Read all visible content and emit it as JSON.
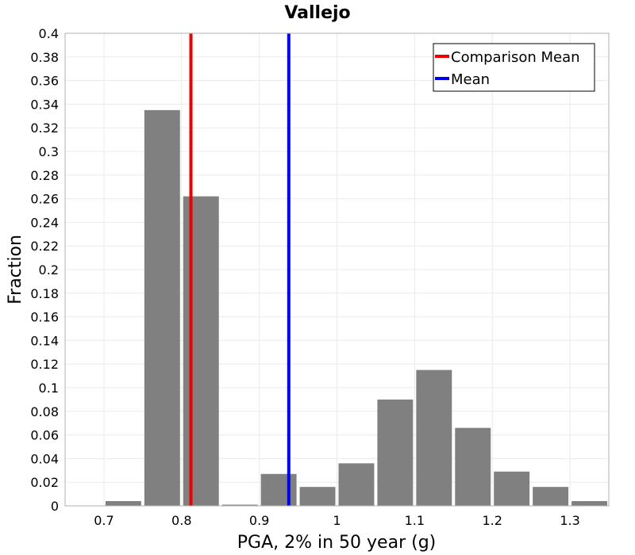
{
  "chart_data": {
    "type": "bar",
    "title": "Vallejo",
    "xlabel": "PGA, 2% in 50 year (g)",
    "ylabel": "Fraction",
    "xlim": [
      0.65,
      1.35
    ],
    "ylim": [
      0,
      0.4
    ],
    "x_ticks": [
      "0.7",
      "0.8",
      "0.9",
      "1",
      "1.1",
      "1.2",
      "1.3"
    ],
    "y_ticks": [
      "0",
      "0.02",
      "0.04",
      "0.06",
      "0.08",
      "0.1",
      "0.12",
      "0.14",
      "0.16",
      "0.18",
      "0.2",
      "0.22",
      "0.24",
      "0.26",
      "0.28",
      "0.3",
      "0.32",
      "0.34",
      "0.36",
      "0.38",
      "0.4"
    ],
    "bin_width": 0.05,
    "bins": [
      {
        "x": 0.675,
        "value": 0.0
      },
      {
        "x": 0.725,
        "value": 0.004
      },
      {
        "x": 0.775,
        "value": 0.335
      },
      {
        "x": 0.825,
        "value": 0.262
      },
      {
        "x": 0.875,
        "value": 0.001
      },
      {
        "x": 0.925,
        "value": 0.027
      },
      {
        "x": 0.975,
        "value": 0.016
      },
      {
        "x": 1.025,
        "value": 0.036
      },
      {
        "x": 1.075,
        "value": 0.09
      },
      {
        "x": 1.125,
        "value": 0.115
      },
      {
        "x": 1.175,
        "value": 0.066
      },
      {
        "x": 1.225,
        "value": 0.029
      },
      {
        "x": 1.275,
        "value": 0.016
      },
      {
        "x": 1.325,
        "value": 0.004
      }
    ],
    "bar_color": "#808080",
    "vlines": [
      {
        "name": "Comparison Mean",
        "x": 0.812,
        "color": "#ee0000"
      },
      {
        "name": "Mean",
        "x": 0.938,
        "color": "#0000ee"
      }
    ],
    "legend": {
      "position": "top-right",
      "entries": [
        "Comparison Mean",
        "Mean"
      ]
    },
    "grid": true
  }
}
